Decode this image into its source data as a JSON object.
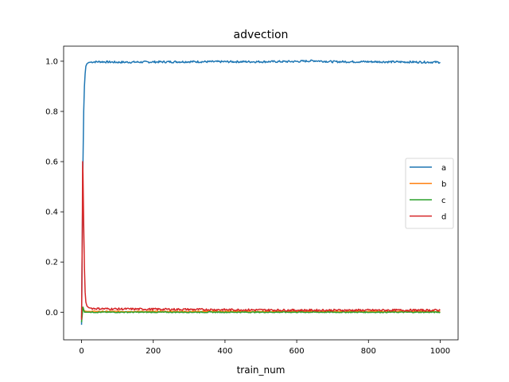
{
  "chart_data": {
    "type": "line",
    "title": "advection",
    "xlabel": "train_num",
    "ylabel": "",
    "xlim": [
      -50,
      1050
    ],
    "ylim": [
      -0.11,
      1.06
    ],
    "xticks": [
      0,
      200,
      400,
      600,
      800,
      1000
    ],
    "yticks": [
      0.0,
      0.2,
      0.4,
      0.6,
      0.8,
      1.0
    ],
    "xtick_labels": [
      "0",
      "200",
      "400",
      "600",
      "800",
      "1000"
    ],
    "ytick_labels": [
      "0.0",
      "0.2",
      "0.4",
      "0.6",
      "0.8",
      "1.0"
    ],
    "grid": false,
    "legend_position": "center-right",
    "series": [
      {
        "name": "a",
        "color": "#1f77b4",
        "x": [
          0,
          2,
          4,
          6,
          8,
          10,
          12,
          15,
          20,
          30,
          50,
          100,
          200,
          300,
          400,
          500,
          600,
          650,
          700,
          800,
          900,
          1000
        ],
        "y": [
          -0.05,
          0.3,
          0.6,
          0.8,
          0.9,
          0.95,
          0.98,
          0.99,
          0.995,
          0.997,
          0.998,
          0.996,
          0.997,
          0.998,
          0.998,
          0.998,
          0.999,
          1.002,
          0.998,
          0.998,
          0.997,
          0.996
        ]
      },
      {
        "name": "b",
        "color": "#ff7f0e",
        "x": [
          0,
          2,
          4,
          6,
          8,
          10,
          15,
          20,
          50,
          100,
          200,
          400,
          600,
          800,
          1000
        ],
        "y": [
          -0.02,
          0.01,
          0.02,
          0.01,
          0.005,
          0.004,
          0.003,
          0.003,
          0.003,
          0.003,
          0.003,
          0.003,
          0.003,
          0.003,
          0.003
        ]
      },
      {
        "name": "c",
        "color": "#2ca02c",
        "x": [
          0,
          2,
          4,
          6,
          8,
          10,
          15,
          20,
          50,
          100,
          200,
          400,
          600,
          800,
          1000
        ],
        "y": [
          -0.04,
          -0.01,
          0.02,
          0.01,
          0.0,
          0.0,
          0.0,
          0.0,
          0.0,
          0.0,
          0.0,
          0.0,
          0.0,
          0.0,
          0.0
        ]
      },
      {
        "name": "d",
        "color": "#d62728",
        "x": [
          0,
          2,
          3,
          4,
          6,
          8,
          10,
          12,
          15,
          20,
          30,
          50,
          100,
          200,
          400,
          600,
          800,
          1000
        ],
        "y": [
          -0.03,
          0.3,
          0.6,
          0.55,
          0.35,
          0.18,
          0.08,
          0.04,
          0.025,
          0.018,
          0.015,
          0.014,
          0.013,
          0.012,
          0.01,
          0.008,
          0.008,
          0.008
        ]
      }
    ],
    "noise": {
      "a": 0.004,
      "b": 0.002,
      "c": 0.002,
      "d": 0.004
    }
  }
}
